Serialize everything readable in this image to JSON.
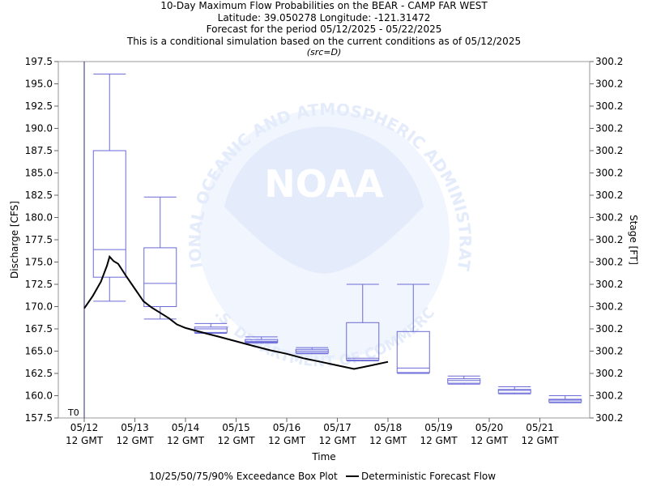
{
  "chart_data": {
    "type": "boxplot",
    "title": [
      "10-Day Maximum Flow Probabilities on the BEAR - CAMP FAR WEST",
      "Latitude: 39.050278 Longitude: -121.31472",
      "Forecast for the period 05/12/2025 - 05/22/2025",
      "This is a conditional simulation based on the current conditions as of 05/12/2025"
    ],
    "source_note": "(src=D)",
    "xlabel": "Time",
    "ylabel": "Discharge [CFS]",
    "ylabel_right": "Stage [FT]",
    "ylim": [
      157.5,
      197.5
    ],
    "y_ticks": [
      "157.5",
      "160.0",
      "162.5",
      "165.0",
      "167.5",
      "170.0",
      "172.5",
      "175.0",
      "177.5",
      "180.0",
      "182.5",
      "185.0",
      "187.5",
      "190.0",
      "192.5",
      "195.0",
      "197.5"
    ],
    "right_ticks": [
      "300.2",
      "300.2",
      "300.2",
      "300.2",
      "300.2",
      "300.2",
      "300.2",
      "300.2",
      "300.2",
      "300.2",
      "300.2",
      "300.2",
      "300.2",
      "300.2",
      "300.2",
      "300.2",
      "300.2"
    ],
    "x_ticks": [
      {
        "day": 0,
        "date": "05/12",
        "time": "12 GMT"
      },
      {
        "day": 1,
        "date": "05/13",
        "time": "12 GMT"
      },
      {
        "day": 2,
        "date": "05/14",
        "time": "12 GMT"
      },
      {
        "day": 3,
        "date": "05/15",
        "time": "12 GMT"
      },
      {
        "day": 4,
        "date": "05/16",
        "time": "12 GMT"
      },
      {
        "day": 5,
        "date": "05/17",
        "time": "12 GMT"
      },
      {
        "day": 6,
        "date": "05/18",
        "time": "12 GMT"
      },
      {
        "day": 7,
        "date": "05/19",
        "time": "12 GMT"
      },
      {
        "day": 8,
        "date": "05/20",
        "time": "12 GMT"
      },
      {
        "day": 9,
        "date": "05/21",
        "time": "12 GMT"
      }
    ],
    "t0_label": "T0",
    "boxes": [
      {
        "day": 0.5,
        "p10": 170.6,
        "p25": 173.3,
        "p50": 176.4,
        "p75": 187.5,
        "p90": 196.1
      },
      {
        "day": 1.5,
        "p10": 168.6,
        "p25": 170.0,
        "p50": 172.6,
        "p75": 176.6,
        "p90": 182.3
      },
      {
        "day": 2.5,
        "p10": 167.0,
        "p25": 167.1,
        "p50": 167.5,
        "p75": 167.7,
        "p90": 168.1
      },
      {
        "day": 3.5,
        "p10": 165.9,
        "p25": 166.0,
        "p50": 166.1,
        "p75": 166.3,
        "p90": 166.6
      },
      {
        "day": 4.5,
        "p10": 164.7,
        "p25": 164.8,
        "p50": 165.0,
        "p75": 165.2,
        "p90": 165.4
      },
      {
        "day": 5.5,
        "p10": 163.9,
        "p25": 164.0,
        "p50": 164.2,
        "p75": 168.2,
        "p90": 172.5
      },
      {
        "day": 6.5,
        "p10": 162.5,
        "p25": 162.6,
        "p50": 163.1,
        "p75": 167.2,
        "p90": 172.5
      },
      {
        "day": 7.5,
        "p10": 161.3,
        "p25": 161.4,
        "p50": 161.7,
        "p75": 161.9,
        "p90": 162.2
      },
      {
        "day": 8.5,
        "p10": 160.2,
        "p25": 160.3,
        "p50": 160.6,
        "p75": 160.7,
        "p90": 161.0
      },
      {
        "day": 9.5,
        "p10": 159.2,
        "p25": 159.3,
        "p50": 159.5,
        "p75": 159.6,
        "p90": 160.0
      }
    ],
    "deterministic": {
      "x": [
        0.0,
        0.17,
        0.33,
        0.45,
        0.5,
        0.58,
        0.67,
        0.83,
        1.0,
        1.17,
        1.33,
        1.5,
        1.67,
        1.83,
        2.0,
        2.33,
        2.67,
        3.0,
        3.33,
        3.67,
        4.0,
        4.33,
        4.67,
        5.0,
        5.33,
        5.67,
        6.0
      ],
      "y": [
        169.8,
        171.2,
        172.8,
        174.6,
        175.6,
        175.1,
        174.8,
        173.4,
        172.0,
        170.6,
        169.9,
        169.3,
        168.7,
        168.0,
        167.6,
        167.1,
        166.6,
        166.1,
        165.6,
        165.1,
        164.7,
        164.2,
        163.8,
        163.4,
        163.0,
        163.4,
        163.8
      ]
    },
    "legend": {
      "box_label": "10/25/50/75/90% Exceedance Box Plot",
      "line_label": "Deterministic Forecast Flow"
    },
    "watermark": {
      "arc_text": "NATIONAL OCEANIC AND ATMOSPHERIC ADMINISTRATION",
      "bottom_text": "U.S. DEPARTMENT OF COMMERCE",
      "center_text": "NOAA"
    },
    "colors": {
      "box": "#6a6ad8",
      "line": "#000000",
      "t0_line": "#2a2a7a",
      "watermark": "#e4ebfb"
    }
  }
}
